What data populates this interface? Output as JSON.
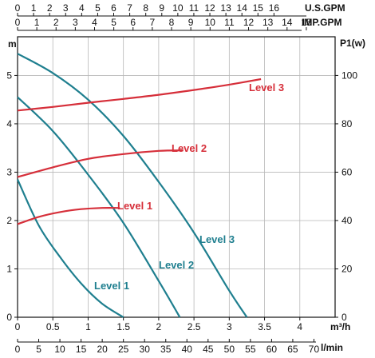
{
  "chart_data": {
    "type": "line",
    "axes": {
      "left": {
        "label": "m",
        "ticks": [
          0,
          1,
          2,
          3,
          4,
          5
        ],
        "ylim": [
          0,
          5.8
        ]
      },
      "right": {
        "label": "P1(w)",
        "ticks": [
          0,
          20,
          40,
          60,
          80,
          100
        ],
        "ylim": [
          0,
          116
        ]
      },
      "bottom_primary": {
        "label": "m³/h",
        "ticks": [
          "0",
          "0.5",
          "1",
          "1.5",
          "2",
          "2.5",
          "3",
          "3.5",
          "4"
        ],
        "xlim": [
          0,
          4.5
        ]
      },
      "bottom_secondary": {
        "label": "l/min",
        "ticks": [
          "0",
          "5",
          "10",
          "15",
          "20",
          "25",
          "30",
          "35",
          "40",
          "45",
          "50",
          "55",
          "60",
          "65",
          "70"
        ]
      },
      "top_row1": {
        "label": "U.S.GPM",
        "ticks": [
          "0",
          "1",
          "2",
          "3",
          "4",
          "5",
          "6",
          "7",
          "8",
          "9",
          "10",
          "11",
          "12",
          "13",
          "14",
          "15",
          "16"
        ]
      },
      "top_row2": {
        "label": "IMP.GPM",
        "ticks": [
          "0",
          "1",
          "2",
          "3",
          "4",
          "5",
          "6",
          "7",
          "8",
          "9",
          "10",
          "11",
          "12",
          "13",
          "14",
          "15"
        ]
      }
    },
    "grid": true,
    "head_series": [
      {
        "name": "Level 1",
        "color": "#1f7f8f",
        "x": [
          0,
          0.3,
          0.6,
          0.9,
          1.2,
          1.5
        ],
        "y": [
          2.85,
          1.9,
          1.25,
          0.7,
          0.28,
          0
        ]
      },
      {
        "name": "Level 2",
        "color": "#1f7f8f",
        "x": [
          0,
          0.5,
          1.0,
          1.5,
          2.0,
          2.3
        ],
        "y": [
          4.55,
          3.85,
          2.95,
          1.95,
          0.75,
          0
        ]
      },
      {
        "name": "Level 3",
        "color": "#1f7f8f",
        "x": [
          0,
          0.5,
          1.0,
          1.5,
          2.0,
          2.5,
          3.0,
          3.25
        ],
        "y": [
          5.45,
          5.05,
          4.5,
          3.75,
          2.8,
          1.75,
          0.55,
          0
        ]
      }
    ],
    "power_series": [
      {
        "name": "Level 1",
        "color": "#d62f3a",
        "x": [
          0,
          0.3,
          0.6,
          0.9,
          1.2,
          1.45
        ],
        "y": [
          38.5,
          41.5,
          43.5,
          44.7,
          45.2,
          45.2
        ]
      },
      {
        "name": "Level 2",
        "color": "#d62f3a",
        "x": [
          0,
          0.5,
          1.0,
          1.5,
          2.0,
          2.35
        ],
        "y": [
          58,
          62,
          65.5,
          67.5,
          68.8,
          69
        ]
      },
      {
        "name": "Level 3",
        "color": "#d62f3a",
        "x": [
          0,
          0.5,
          1.0,
          1.5,
          2.0,
          2.5,
          3.0,
          3.45
        ],
        "y": [
          85.5,
          87,
          88.7,
          90.3,
          92,
          94,
          96.2,
          98.5
        ]
      }
    ]
  }
}
